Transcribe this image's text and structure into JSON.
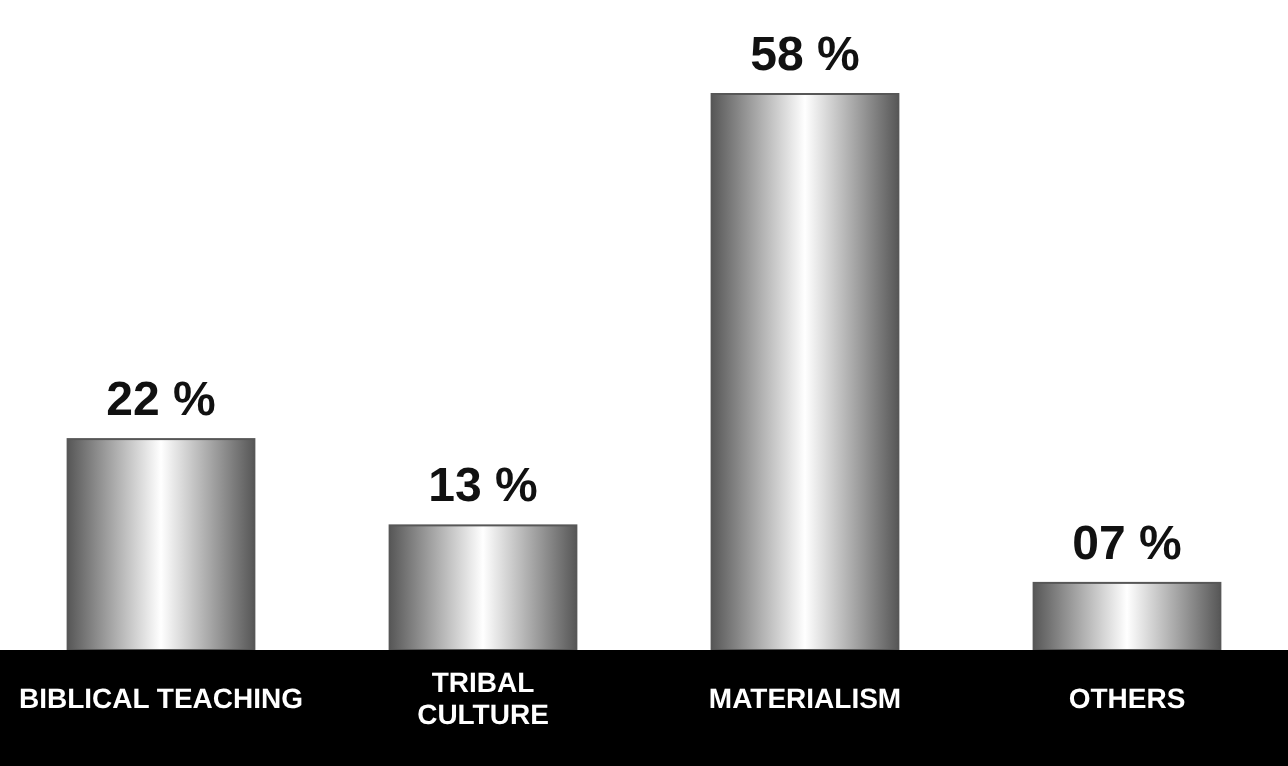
{
  "chart_data": {
    "type": "bar",
    "categories": [
      "BIBLICAL TEACHING",
      "TRIBAL\nCULTURE",
      "MATERIALISM",
      "OTHERS"
    ],
    "values": [
      22,
      13,
      58,
      7
    ],
    "value_labels": [
      "22 %",
      "13 %",
      "58 %",
      "07 %"
    ],
    "color": "#575757"
  }
}
